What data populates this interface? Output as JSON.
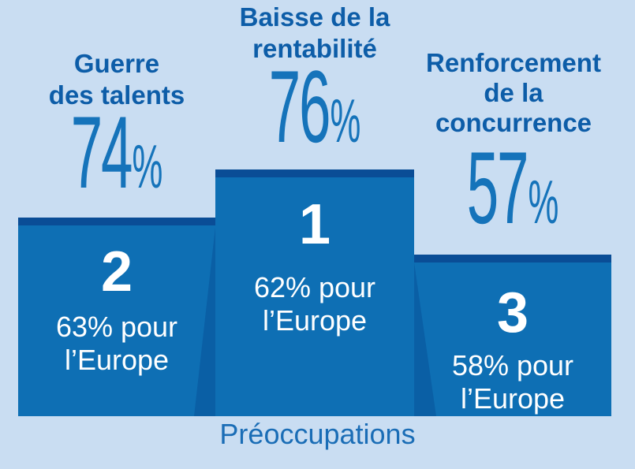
{
  "caption": "Préoccupations",
  "colors": {
    "background": "#c9ddf2",
    "block_front": "#0e6fb4",
    "block_top_stripe": "#0a4d96",
    "block_side_face": "#0a5fa5",
    "title_text": "#0d5da8",
    "value_text": "#1573ba",
    "caption_text": "#1a6db6",
    "block_label_text": "#ffffff"
  },
  "items": [
    {
      "id": "guerre-des-talents",
      "title": "Guerre\ndes talents",
      "value": "74",
      "unit": "%",
      "rank": "2",
      "europe": "63% pour\nl’Europe"
    },
    {
      "id": "baisse-de-la-rentabilite",
      "title": "Baisse de la\nrentabilité",
      "value": "76",
      "unit": "%",
      "rank": "1",
      "europe": "62% pour\nl’Europe"
    },
    {
      "id": "renforcement-de-la-concurrence",
      "title": "Renforcement\nde la\nconcurrence",
      "value": "57",
      "unit": "%",
      "rank": "3",
      "europe": "58% pour\nl’Europe"
    }
  ],
  "chart_data": {
    "type": "bar",
    "title": "Préoccupations",
    "categories": [
      "Guerre des talents",
      "Baisse de la rentabilité",
      "Renforcement de la concurrence"
    ],
    "series": [
      {
        "name": "",
        "values": [
          74,
          76,
          57
        ]
      },
      {
        "name": "pour l’Europe",
        "values": [
          63,
          62,
          58
        ]
      }
    ],
    "ranks": [
      2,
      1,
      3
    ],
    "xlabel": "",
    "ylabel": "",
    "ylim": [
      0,
      100
    ],
    "grid": false,
    "legend_position": "none",
    "layout_hint": "podium infographic: rank 1 tallest center column, rank 2 left, rank 3 right"
  }
}
